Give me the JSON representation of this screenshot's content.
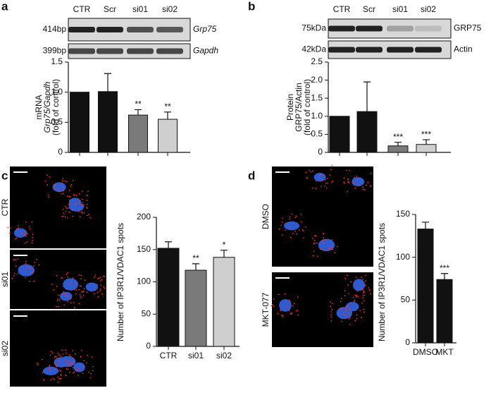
{
  "panels": [
    "a",
    "b",
    "c",
    "d"
  ],
  "blots": [
    {
      "rows": [
        {
          "size": "414bp",
          "label": "Grp75"
        },
        {
          "size": "399bp",
          "label": "Gapdh"
        }
      ]
    },
    {
      "rows": [
        {
          "size": "75kDa",
          "label": "GRP75"
        },
        {
          "size": "42kDa",
          "label": "Actin"
        }
      ]
    }
  ],
  "images": [
    [
      "CTR",
      "si01",
      "si02"
    ],
    [
      "DMSO",
      "MKT-077"
    ]
  ],
  "chart_data": [
    {
      "type": "bar",
      "ylabel": [
        "mRNA",
        "Grp75/Gapdh",
        "(fold of control)"
      ],
      "categories": [
        "CTR",
        "Scr",
        "si01",
        "si02"
      ],
      "values": [
        1.0,
        1.01,
        0.62,
        0.55
      ],
      "errors": [
        null,
        0.3,
        0.09,
        0.12
      ],
      "significance": [
        null,
        null,
        "**",
        "**"
      ],
      "colors": [
        "#111111",
        "#111111",
        "#7a7a7a",
        "#cfcfcf"
      ],
      "ylim": [
        0,
        1.5
      ],
      "yticks": [
        0,
        0.5,
        {
          "value": 1,
          "label": "1.0"
        },
        1.5
      ]
    },
    {
      "type": "bar",
      "ylabel": [
        "Protein",
        "GRP75/Actin",
        "(fold of control)"
      ],
      "categories": [
        "CTR",
        "Scr",
        "si01",
        "si02"
      ],
      "values": [
        1.0,
        1.13,
        0.18,
        0.22
      ],
      "errors": [
        null,
        0.82,
        0.1,
        0.13
      ],
      "significance": [
        null,
        null,
        "***",
        "***"
      ],
      "colors": [
        "#111111",
        "#111111",
        "#7a7a7a",
        "#cfcfcf"
      ],
      "ylim": [
        0,
        2.5
      ],
      "yticks": [
        0,
        0.5,
        {
          "value": 1,
          "label": "1.0"
        },
        1.5,
        {
          "value": 2,
          "label": "2.0"
        },
        2.5
      ]
    },
    {
      "type": "bar",
      "ylabel": [
        "Number of IP3R1/VDAC1 spots"
      ],
      "categories": [
        "CTR",
        "si01",
        "si02"
      ],
      "values": [
        152,
        118,
        138
      ],
      "errors": [
        10,
        10,
        11
      ],
      "significance": [
        null,
        "**",
        "*"
      ],
      "colors": [
        "#111111",
        "#7a7a7a",
        "#cfcfcf"
      ],
      "ylim": [
        0,
        200
      ],
      "yticks": [
        0,
        50,
        100,
        150,
        200
      ]
    },
    {
      "type": "bar",
      "ylabel": [
        "Number of IP3R1/VDAC1 spots"
      ],
      "categories": [
        "DMSO",
        "MKT"
      ],
      "values": [
        133,
        74
      ],
      "errors": [
        8,
        7
      ],
      "significance": [
        null,
        "***"
      ],
      "colors": [
        "#111111",
        "#111111"
      ],
      "ylim": [
        0,
        150
      ],
      "yticks": [
        0,
        50,
        100,
        150
      ]
    }
  ]
}
